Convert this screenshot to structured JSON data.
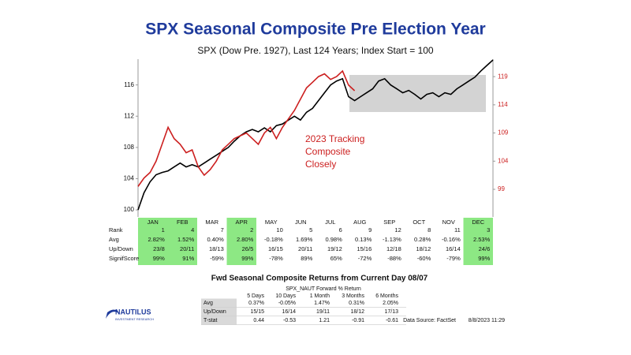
{
  "chart_data": {
    "type": "line",
    "title": "SPX Seasonal Composite Pre Election Year",
    "subtitle": "SPX (Dow Pre. 1927), Last 124 Years; Index Start = 100",
    "annotation": [
      "2023 Tracking",
      "Composite",
      "Closely"
    ],
    "ylim": [
      99.1,
      119.3
    ],
    "yticks": [
      100,
      104,
      108,
      112,
      116
    ],
    "y2lim": [
      94.1,
      122.1
    ],
    "y2ticks": [
      99,
      104,
      109,
      114,
      119
    ],
    "series": [
      {
        "color": "#000000",
        "axis": "y",
        "values": [
          100,
          102.2,
          103.6,
          104.5,
          104.8,
          105,
          105.5,
          106,
          105.5,
          105.8,
          105.5,
          106,
          106.5,
          107,
          107.5,
          108,
          108.8,
          109.5,
          110,
          110.3,
          110,
          110.5,
          110,
          110.8,
          111,
          111.5,
          112,
          111.5,
          112.5,
          113,
          114,
          115,
          116,
          116.5,
          116.8,
          114.5,
          114,
          114.5,
          115,
          115.5,
          116.5,
          116.8,
          116,
          115.5,
          115,
          115.3,
          114.8,
          114.2,
          114.8,
          115,
          114.5,
          115,
          114.8,
          115.5,
          116,
          116.5,
          117,
          117.8,
          118.5,
          119.2
        ]
      },
      {
        "color": "#cc1f1f",
        "axis": "y2",
        "values": [
          99.5,
          101,
          102,
          104,
          107,
          110,
          108,
          107,
          105.5,
          106,
          103,
          101.5,
          102.5,
          104,
          106,
          107,
          108,
          108.5,
          109,
          108,
          107,
          109,
          110,
          108,
          110,
          111.5,
          113,
          115,
          117,
          118,
          119,
          119.5,
          118.5,
          119,
          120,
          117.5,
          116.5,
          null,
          null,
          null,
          null,
          null,
          null,
          null,
          null,
          null,
          null,
          null,
          null,
          null,
          null,
          null,
          null,
          null,
          null,
          null,
          null,
          null,
          null,
          null
        ]
      }
    ]
  },
  "table": {
    "months": [
      "JAN",
      "FEB",
      "MAR",
      "APR",
      "MAY",
      "JUN",
      "JUL",
      "AUG",
      "SEP",
      "OCT",
      "NOV",
      "DEC"
    ],
    "highlighted": [
      true,
      true,
      false,
      true,
      false,
      false,
      false,
      false,
      false,
      false,
      false,
      true
    ],
    "highlight_color": "#8de884",
    "rows": [
      {
        "label": "Rank",
        "cells": [
          1,
          4,
          7,
          2,
          10,
          5,
          6,
          9,
          12,
          8,
          11,
          3
        ]
      },
      {
        "label": "Avg",
        "cells": [
          "2.82%",
          "1.52%",
          "0.40%",
          "2.80%",
          "-0.18%",
          "1.69%",
          "0.98%",
          "0.13%",
          "-1.13%",
          "0.28%",
          "-0.16%",
          "2.53%"
        ]
      },
      {
        "label": "Up/Down",
        "cells": [
          "23/8",
          "20/11",
          "18/13",
          "26/5",
          "16/15",
          "20/11",
          "19/12",
          "15/16",
          "12/18",
          "18/12",
          "16/14",
          "24/6"
        ]
      },
      {
        "label": "SignifScore",
        "cells": [
          "99%",
          "91%",
          "-59%",
          "99%",
          "-78%",
          "89%",
          "65%",
          "-72%",
          "-88%",
          "-60%",
          "-79%",
          "99%"
        ]
      }
    ]
  },
  "forward": {
    "title": "Fwd Seasonal Composite Returns from Current Day 08/07",
    "subtitle": "SPX_NAUT Forward % Return",
    "headers": [
      "5 Days",
      "10 Days",
      "1 Month",
      "3 Months",
      "6 Months"
    ],
    "rows": [
      {
        "label": "Avg",
        "cells": [
          "0.37%",
          "-0.05%",
          "1.47%",
          "0.31%",
          "2.05%"
        ]
      },
      {
        "label": "Up/Down",
        "cells": [
          "15/15",
          "16/14",
          "19/11",
          "18/12",
          "17/13"
        ]
      },
      {
        "label": "T-stat",
        "cells": [
          "0.44",
          "-0.53",
          "1.21",
          "-0.91",
          "-0.61"
        ]
      }
    ]
  },
  "footer": {
    "source": "Data Source: FactSet",
    "timestamp": "8/8/2023 11:29"
  },
  "logo": {
    "name": "NAUTILUS",
    "tagline": "INVESTMENT RESEARCH"
  }
}
